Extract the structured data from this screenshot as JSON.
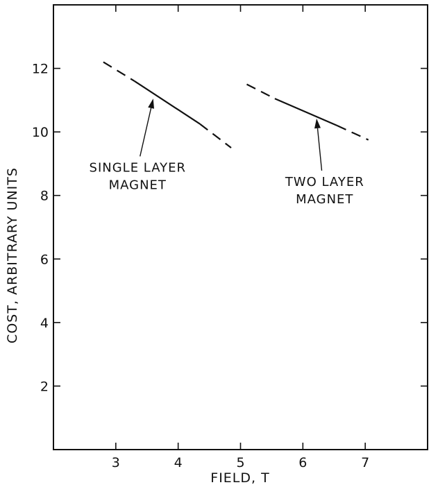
{
  "chart_data": {
    "type": "line",
    "title": "",
    "xlabel": "FIELD, T",
    "ylabel": "COST, ARBITRARY UNITS",
    "xlim": [
      2,
      8
    ],
    "ylim": [
      0,
      14
    ],
    "x_ticks": [
      3,
      4,
      5,
      6,
      7
    ],
    "y_ticks": [
      2,
      4,
      6,
      8,
      10,
      12
    ],
    "grid": false,
    "series": [
      {
        "segments": [
          {
            "style": "dashed",
            "points": [
              [
                2.8,
                12.2
              ],
              [
                3.3,
                11.6
              ]
            ]
          },
          {
            "style": "solid",
            "points": [
              [
                3.3,
                11.6
              ],
              [
                4.35,
                10.25
              ]
            ]
          },
          {
            "style": "dashed",
            "points": [
              [
                4.35,
                10.25
              ],
              [
                4.85,
                9.5
              ]
            ]
          }
        ]
      },
      {
        "segments": [
          {
            "style": "dashed",
            "points": [
              [
                5.1,
                11.5
              ],
              [
                5.55,
                11.05
              ]
            ]
          },
          {
            "style": "solid",
            "points": [
              [
                5.55,
                11.05
              ],
              [
                6.55,
                10.2
              ]
            ]
          },
          {
            "style": "dashed",
            "points": [
              [
                6.55,
                10.2
              ],
              [
                7.05,
                9.75
              ]
            ]
          }
        ]
      }
    ],
    "annotations": [
      {
        "lines": [
          "SINGLE LAYER",
          "MAGNET"
        ],
        "x": 3.35,
        "y": 8.75,
        "arrow_to": [
          3.6,
          11.05
        ]
      },
      {
        "lines": [
          "TWO LAYER",
          "MAGNET"
        ],
        "x": 6.35,
        "y": 8.3,
        "arrow_to": [
          6.22,
          10.42
        ]
      }
    ]
  }
}
